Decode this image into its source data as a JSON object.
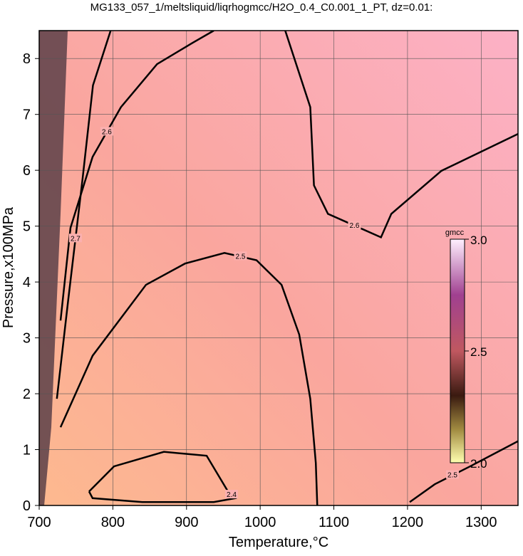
{
  "chart_data": {
    "type": "contour",
    "title": "MG133_057_1/meltsliquid/liqrhogmcc/H2O_0.4_C0.001_1_PT, dz=0.01:",
    "x_label": "Temperature,°C",
    "y_label": "Pressure,x100MPa",
    "xlim": [
      700,
      1350
    ],
    "ylim": [
      0,
      8.5
    ],
    "xticks": [
      700,
      800,
      900,
      1000,
      1100,
      1200,
      1300
    ],
    "yticks": [
      0,
      1,
      2,
      3,
      4,
      5,
      6,
      7,
      8
    ],
    "grid": true,
    "colorbar": {
      "label": "gmcc",
      "lim": [
        2.0,
        3.0
      ],
      "ticks": [
        {
          "value": 2.0,
          "label": "2.0"
        },
        {
          "value": 2.5,
          "label": "2.5"
        },
        {
          "value": 3.0,
          "label": "3.0"
        }
      ]
    },
    "contours": [
      {
        "level": 2.4,
        "x": [
          767.7,
          801.6,
          869.3,
          927.3,
          956.3,
          966,
          937,
          840,
          772.5,
          767.7
        ],
        "y": [
          0.25,
          0.7,
          0.96,
          0.89,
          0.25,
          0.13,
          0.06,
          0.06,
          0.13,
          0.25
        ]
      },
      {
        "level": 2.5,
        "x": [
          729,
          772.5,
          845,
          898,
          951.5,
          995,
          1029,
          1053,
          1068,
          1075.5,
          1077.5
        ],
        "y": [
          1.4,
          2.68,
          3.95,
          4.33,
          4.52,
          4.39,
          3.95,
          3.06,
          1.91,
          0.76,
          0
        ]
      },
      {
        "level": 2.5,
        "x": [
          1203,
          1237,
          1285,
          1350
        ],
        "y": [
          0.06,
          0.38,
          0.7,
          1.15
        ]
      },
      {
        "level": 2.6,
        "x": [
          729,
          742.5,
          772.5,
          811,
          860,
          908,
          937
        ],
        "y": [
          3.31,
          4.97,
          6.24,
          7.13,
          7.9,
          8.28,
          8.5
        ]
      },
      {
        "level": 2.6,
        "x": [
          1034,
          1068,
          1073,
          1092,
          1164,
          1178,
          1246,
          1350
        ],
        "y": [
          8.5,
          7.13,
          5.73,
          5.22,
          4.8,
          5.22,
          5.99,
          6.65
        ]
      },
      {
        "level": 2.7,
        "x": [
          724,
          739.5,
          759,
          773,
          797
        ],
        "y": [
          1.91,
          3.69,
          5.86,
          7.52,
          8.5
        ]
      }
    ]
  }
}
